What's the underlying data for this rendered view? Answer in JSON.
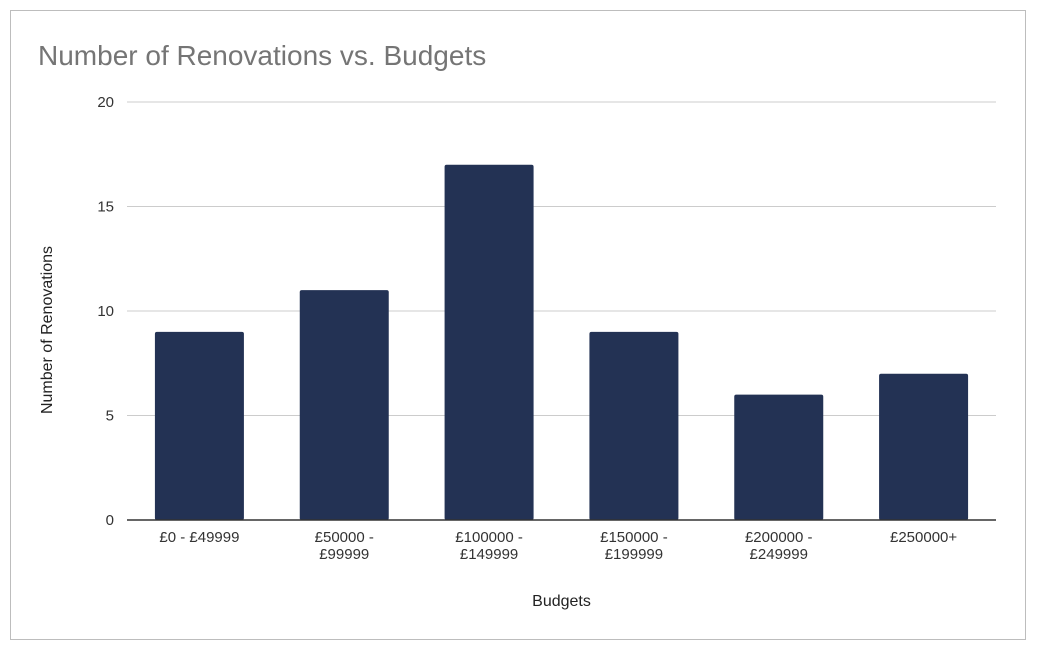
{
  "chart_data": {
    "type": "bar",
    "title": "Number of Renovations vs. Budgets",
    "xlabel": "Budgets",
    "ylabel": "Number of Renovations",
    "categories": [
      [
        "£0 - £49999"
      ],
      [
        "£50000 -",
        "£99999"
      ],
      [
        "£100000 -",
        "£149999"
      ],
      [
        "£150000 -",
        "£199999"
      ],
      [
        "£200000 -",
        "£249999"
      ],
      [
        "£250000+"
      ]
    ],
    "values": [
      9,
      11,
      17,
      9,
      6,
      7
    ],
    "ylim": [
      0,
      20
    ],
    "yticks": [
      0,
      5,
      10,
      15,
      20
    ],
    "grid": true,
    "legend": "none",
    "colors": {
      "bar": "#233254",
      "grid": "#cccccc",
      "axis": "#333333"
    }
  }
}
